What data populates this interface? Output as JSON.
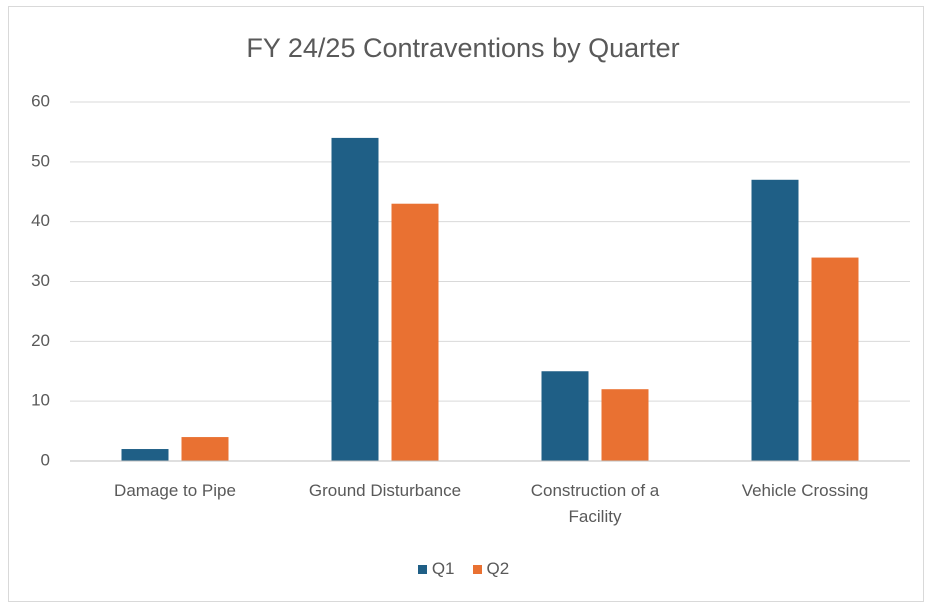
{
  "chart_data": {
    "type": "bar",
    "title": "FY 24/25 Contraventions by Quarter",
    "categories": [
      "Damage to Pipe",
      "Ground Disturbance",
      "Construction of a Facility",
      "Vehicle Crossing"
    ],
    "series": [
      {
        "name": "Q1",
        "color": "#1f5f86",
        "values": [
          2,
          54,
          15,
          47
        ]
      },
      {
        "name": "Q2",
        "color": "#e97132",
        "values": [
          4,
          43,
          12,
          34
        ]
      }
    ],
    "ylim": [
      0,
      60
    ],
    "yticks": [
      0,
      10,
      20,
      30,
      40,
      50,
      60
    ],
    "grid": true,
    "legend": "bottom"
  }
}
